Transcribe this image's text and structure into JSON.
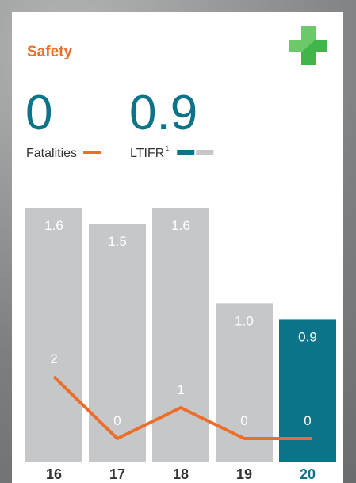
{
  "chart_data": {
    "type": "bar",
    "title": "Safety",
    "kpis": [
      {
        "value": 0,
        "series": 1
      },
      {
        "value": 0.9,
        "series": 0,
        "note": "1"
      }
    ],
    "categories": [
      "16",
      "17",
      "18",
      "19",
      "20"
    ],
    "highlight_index": 4,
    "series": [
      {
        "name": "LTIFR",
        "color": "#c6c7c9",
        "highlight_color": "#0b7489",
        "values": [
          1.6,
          1.5,
          1.6,
          1,
          0.9
        ],
        "value_labels": [
          "1.6",
          "1.5",
          "1.6",
          "1.0",
          "0.9"
        ]
      },
      {
        "name": "Fatalities",
        "type": "line",
        "axis": "y2",
        "color": "#ec6e2a",
        "values": [
          2,
          0,
          1,
          0,
          0
        ]
      }
    ],
    "ylim": [
      0,
      1.6
    ],
    "y2lim": [
      0,
      2
    ]
  }
}
